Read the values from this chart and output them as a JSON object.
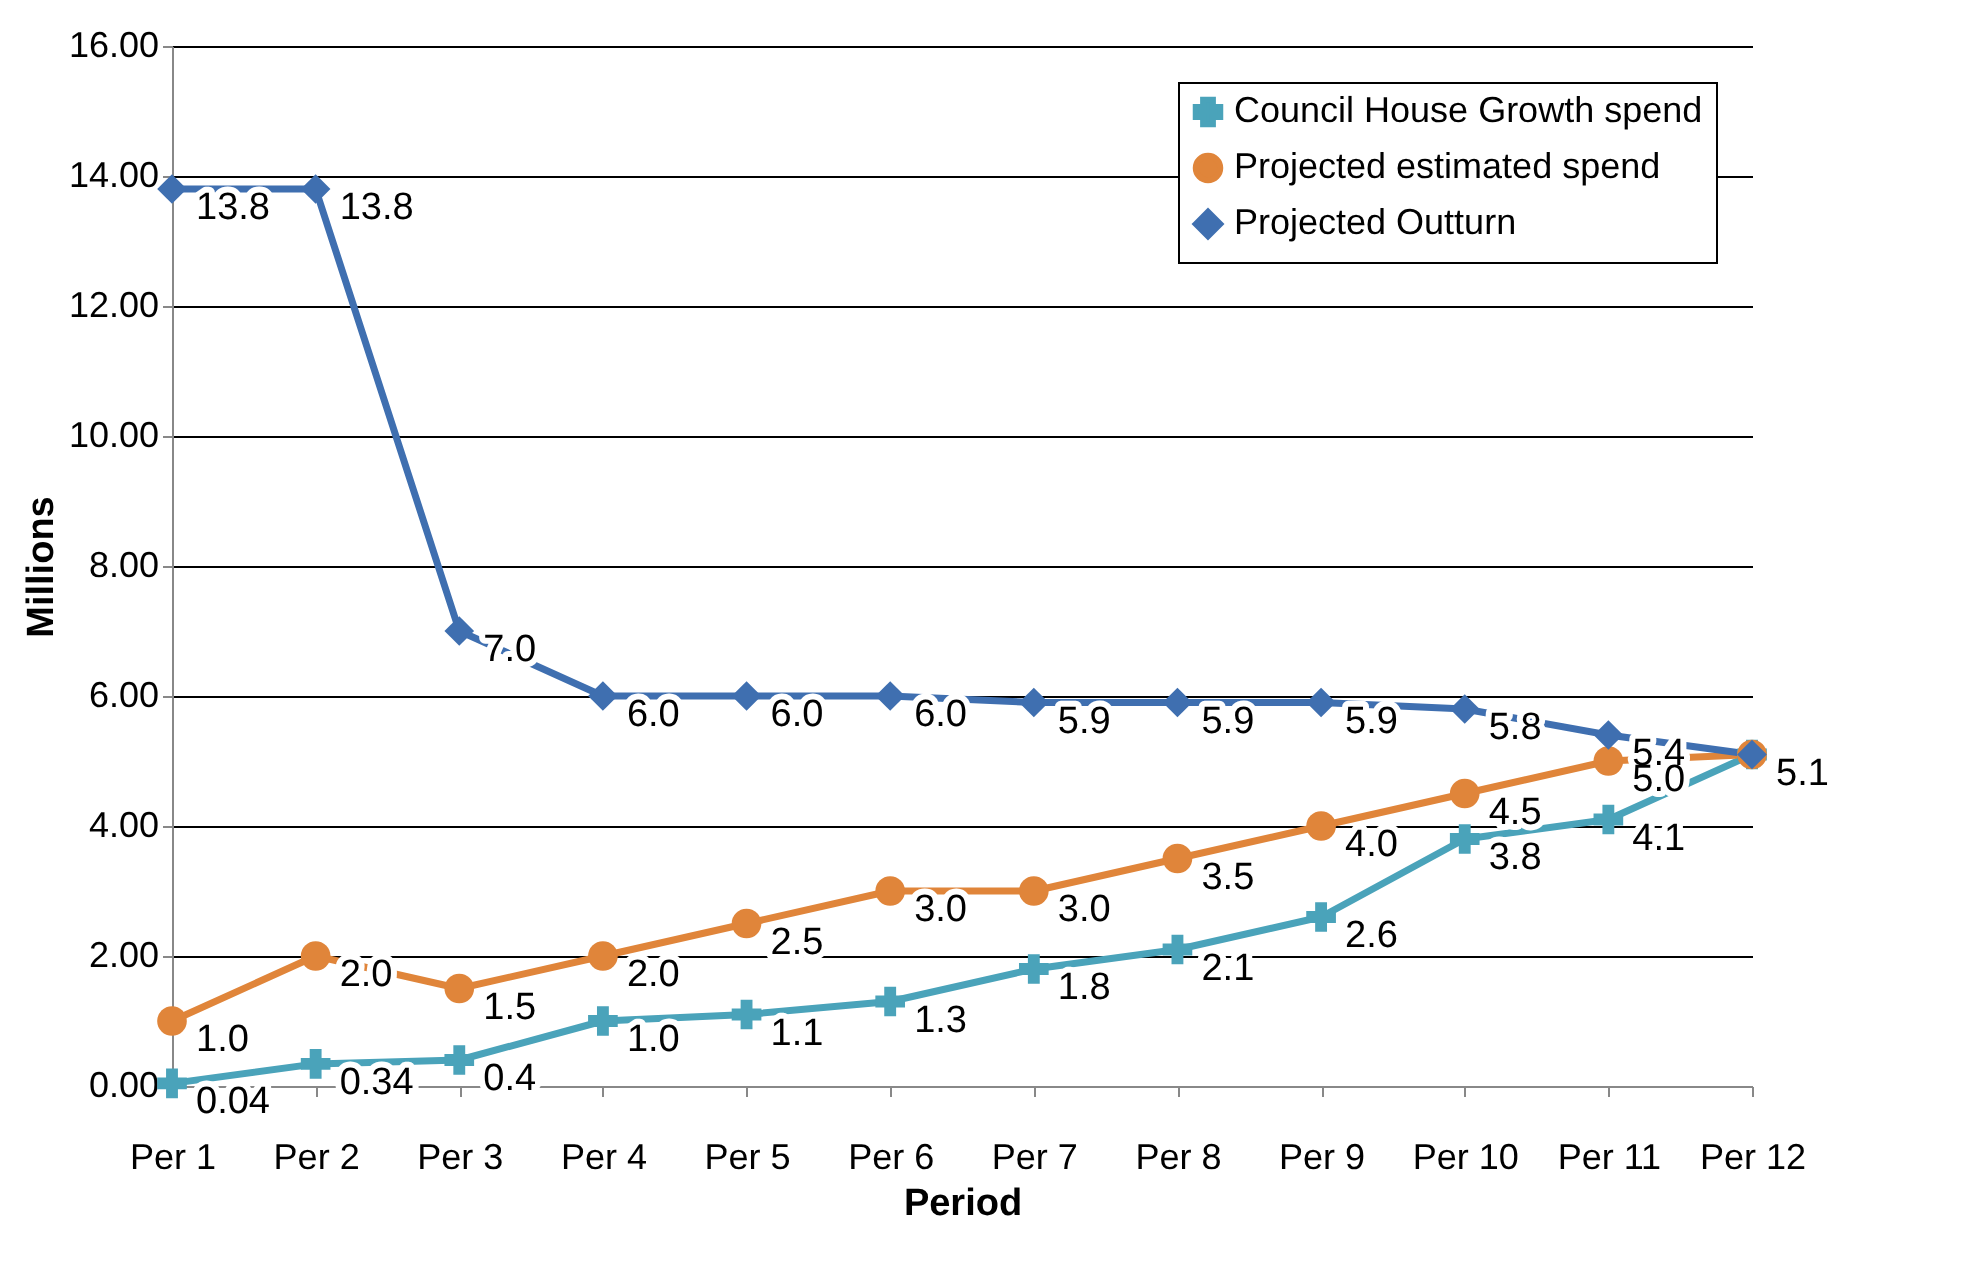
{
  "chart_data": {
    "type": "line",
    "xlabel": "Period",
    "ylabel": "Millions",
    "categories": [
      "Per 1",
      "Per 2",
      "Per 3",
      "Per 4",
      "Per 5",
      "Per 6",
      "Per 7",
      "Per 8",
      "Per 9",
      "Per 10",
      "Per 11",
      "Per 12"
    ],
    "series": [
      {
        "name": "Council House Growth spend",
        "color": "#4aa3ba",
        "marker": "cross",
        "values": [
          0.04,
          0.34,
          0.4,
          1.0,
          1.1,
          1.3,
          1.8,
          2.1,
          2.6,
          3.8,
          4.1,
          5.1
        ],
        "value_labels": [
          "0.04",
          "0.34",
          "0.4",
          "1.0",
          "1.1",
          "1.3",
          "1.8",
          "2.1",
          "2.6",
          "3.8",
          "4.1",
          null
        ]
      },
      {
        "name": "Projected estimated spend",
        "color": "#e0853a",
        "marker": "circle",
        "values": [
          1.0,
          2.0,
          1.5,
          2.0,
          2.5,
          3.0,
          3.0,
          3.5,
          4.0,
          4.5,
          5.0,
          5.1
        ],
        "value_labels": [
          "1.0",
          "2.0",
          "1.5",
          "2.0",
          "2.5",
          "3.0",
          "3.0",
          "3.5",
          "4.0",
          "4.5",
          "5.0",
          null
        ]
      },
      {
        "name": "Projected Outturn",
        "color": "#3f6fb0",
        "marker": "diamond",
        "values": [
          13.8,
          13.8,
          7.0,
          6.0,
          6.0,
          6.0,
          5.9,
          5.9,
          5.9,
          5.8,
          5.4,
          5.1
        ],
        "value_labels": [
          "13.8",
          "13.8",
          "7.0",
          "6.0",
          "6.0",
          "6.0",
          "5.9",
          "5.9",
          "5.9",
          "5.8",
          "5.4",
          "5.1"
        ]
      }
    ],
    "ylim": [
      0,
      16
    ],
    "yticks": [
      {
        "value": 0,
        "label": "0.00"
      },
      {
        "value": 2,
        "label": "2.00"
      },
      {
        "value": 4,
        "label": "4.00"
      },
      {
        "value": 6,
        "label": "6.00"
      },
      {
        "value": 8,
        "label": "8.00"
      },
      {
        "value": 10,
        "label": "10.00"
      },
      {
        "value": 12,
        "label": "12.00"
      },
      {
        "value": 14,
        "label": "14.00"
      },
      {
        "value": 16,
        "label": "16.00"
      }
    ],
    "grid": "y",
    "legend": "top right"
  }
}
